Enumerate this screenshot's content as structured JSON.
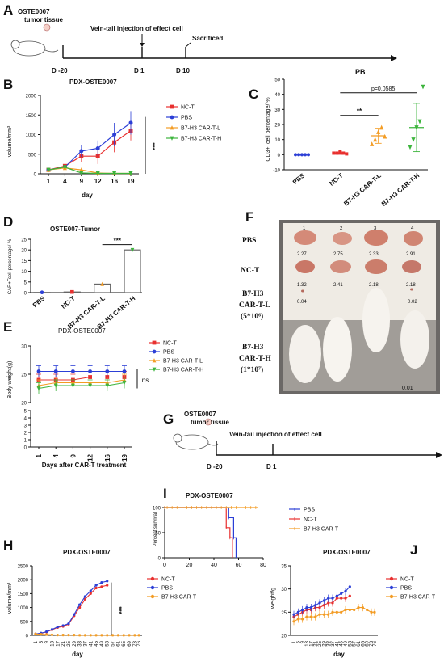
{
  "panel_letters": {
    "A": "A",
    "B": "B",
    "C": "C",
    "D": "D",
    "E": "E",
    "F": "F",
    "G": "G",
    "H": "H",
    "I": "I",
    "J": "J"
  },
  "timeline_A": {
    "label_top": "OSTE0007",
    "label_bottom": "tumor tissue",
    "injection": "Vein-tail injection of effect cell",
    "sacrificed": "Sacrificed",
    "ticks": [
      "D -20",
      "D 1",
      "D 10"
    ]
  },
  "timeline_G": {
    "label_top": "OSTE0007",
    "label_bottom": "tumor tissue",
    "injection": "Vein-tail injection of effect cell",
    "ticks": [
      "D -20",
      "D 1"
    ]
  },
  "photo_F": {
    "rows": [
      "PBS",
      "NC-T"
    ],
    "row_l": [
      "B7-H3",
      "CAR-T-L",
      "(5*10⁶)"
    ],
    "row_h": [
      "B7-H3",
      "CAR-T-H",
      "(1*10⁷)"
    ],
    "col_nums": [
      "1",
      "2",
      "3",
      "4"
    ],
    "weights_pbs": [
      "2.27",
      "2.75",
      "2.33",
      "2.91"
    ],
    "weights_nct": [
      "1.32",
      "2.41",
      "2.18",
      "2.18"
    ],
    "weights_low": [
      "0.04",
      "0.02"
    ],
    "weight_h": "0.01"
  },
  "chart_data": [
    {
      "id": "B",
      "type": "line",
      "title": "PDX-OSTE0007",
      "xlabel": "day",
      "ylabel": "volume/mm³",
      "categories": [
        "1",
        "4",
        "9",
        "12",
        "16",
        "19"
      ],
      "ylim": [
        0,
        2000
      ],
      "yticks": [
        "0",
        "500",
        "1000",
        "1500",
        "2000"
      ],
      "series": [
        {
          "name": "NC-T",
          "color": "#e8302f",
          "marker": "square",
          "values": [
            100,
            200,
            450,
            450,
            800,
            1100
          ],
          "err": [
            20,
            60,
            150,
            200,
            250,
            250
          ]
        },
        {
          "name": "PBS",
          "color": "#2c3fd6",
          "marker": "circle",
          "values": [
            100,
            170,
            580,
            650,
            1000,
            1300
          ],
          "err": [
            20,
            60,
            150,
            200,
            300,
            300
          ]
        },
        {
          "name": "B7-H3 CAR-T-L",
          "color": "#f39c24",
          "marker": "triangle",
          "values": [
            100,
            150,
            100,
            20,
            10,
            10
          ],
          "err": [
            20,
            50,
            40,
            10,
            5,
            5
          ]
        },
        {
          "name": "B7-H3 CAR-T-H",
          "color": "#3cb43c",
          "marker": "triangle-down",
          "values": [
            100,
            170,
            20,
            10,
            10,
            10
          ],
          "err": [
            20,
            50,
            10,
            5,
            5,
            5
          ]
        }
      ],
      "annotation": "***"
    },
    {
      "id": "C",
      "type": "scatter",
      "title": "PB",
      "ylabel": "CD3+Tcell percentage/ %",
      "categories": [
        "PBS",
        "NC-T",
        "B7-H3 CAR-T-L",
        "B7-H3 CAR-T-H"
      ],
      "ylim": [
        -10,
        50
      ],
      "yticks": [
        "-10",
        "0",
        "10",
        "20",
        "30",
        "40",
        "50"
      ],
      "colors": [
        "#2c3fd6",
        "#e8302f",
        "#f39c24",
        "#3cb43c"
      ],
      "points": [
        [
          0,
          0,
          0,
          0,
          0
        ],
        [
          1,
          1,
          2,
          1,
          0.5
        ],
        [
          7,
          10,
          15,
          18,
          12
        ],
        [
          5,
          10,
          18,
          22,
          45
        ]
      ],
      "means": [
        0,
        1,
        12.5,
        18
      ],
      "sd": [
        0.2,
        0.8,
        5,
        16
      ],
      "annotations": [
        "**",
        "p=0.0585"
      ]
    },
    {
      "id": "D",
      "type": "bar",
      "title": "OSTE007-Tumor",
      "ylabel": "CAR+Tcell percentage/ %",
      "categories": [
        "PBS",
        "NC-T",
        "B7-H3 CAR-T-L",
        "B7-H3 CAR-T-H"
      ],
      "values": [
        0.1,
        0.3,
        4,
        20
      ],
      "colors": [
        "#2c3fd6",
        "#e8302f",
        "#f39c24",
        "#3cb43c"
      ],
      "ylim": [
        0,
        25
      ],
      "yticks": [
        "0",
        "5",
        "10",
        "15",
        "20",
        "25"
      ],
      "annotation": "***"
    },
    {
      "id": "E",
      "type": "line",
      "title": "PDX-OSTE0007",
      "xlabel": "Days after CAR-T treatment",
      "ylabel": "Body weight(g)",
      "categories": [
        "1",
        "4",
        "9",
        "12",
        "16",
        "19"
      ],
      "ylim": [
        0,
        30
      ],
      "ybreak": [
        5,
        20
      ],
      "yticks": [
        "0",
        "1",
        "2",
        "3",
        "4",
        "5",
        "20",
        "25",
        "30"
      ],
      "series": [
        {
          "name": "NC-T",
          "color": "#e8302f",
          "marker": "square",
          "values": [
            24,
            24,
            24,
            24.5,
            24.5,
            24.5
          ],
          "err": [
            1,
            1,
            1,
            1,
            1,
            1
          ]
        },
        {
          "name": "PBS",
          "color": "#2c3fd6",
          "marker": "circle",
          "values": [
            25.5,
            25.5,
            25.5,
            25.5,
            25.5,
            25.5
          ],
          "err": [
            1,
            1,
            1,
            1,
            1,
            1
          ]
        },
        {
          "name": "B7-H3 CAR-T-L",
          "color": "#f39c24",
          "marker": "triangle",
          "values": [
            23,
            23.5,
            23.5,
            23.5,
            23.5,
            24
          ],
          "err": [
            1,
            1,
            1,
            1,
            1,
            1
          ]
        },
        {
          "name": "B7-H3 CAR-T-H",
          "color": "#3cb43c",
          "marker": "triangle-down",
          "values": [
            22.5,
            23,
            23,
            23,
            23,
            23.5
          ],
          "err": [
            1,
            1,
            1,
            1,
            1,
            1
          ]
        }
      ],
      "annotation": "ns"
    },
    {
      "id": "H",
      "type": "line",
      "title": "PDX-OSTE0007",
      "xlabel": "day",
      "ylabel": "volume/mm³",
      "ylim": [
        0,
        2500
      ],
      "yticks": [
        "0",
        "500",
        "1000",
        "1500",
        "2000",
        "2500"
      ],
      "xticks": [
        "1",
        "5",
        "9",
        "13",
        "17",
        "21",
        "25",
        "29",
        "33",
        "37",
        "41",
        "45",
        "49",
        "53",
        "57",
        "61",
        "65",
        "69",
        "73",
        "76"
      ],
      "series": [
        {
          "name": "NC-T",
          "color": "#e8302f",
          "x": [
            1,
            5,
            9,
            13,
            17,
            21,
            25,
            29,
            33,
            37,
            41,
            45,
            49,
            53
          ],
          "values": [
            50,
            70,
            120,
            200,
            280,
            320,
            400,
            700,
            1000,
            1300,
            1500,
            1700,
            1750,
            1800
          ]
        },
        {
          "name": "PBS",
          "color": "#2c3fd6",
          "x": [
            1,
            5,
            9,
            13,
            17,
            21,
            25,
            29,
            33,
            37,
            41,
            45,
            49,
            53
          ],
          "values": [
            50,
            80,
            130,
            210,
            300,
            350,
            420,
            750,
            1100,
            1400,
            1600,
            1800,
            1900,
            1950
          ]
        },
        {
          "name": "B7-H3 CAR-T",
          "color": "#f39c24",
          "x": [
            1,
            5,
            9,
            13,
            17,
            21,
            25,
            29,
            33,
            37,
            41,
            45,
            49,
            53,
            57,
            61,
            65,
            69,
            73,
            76
          ],
          "values": [
            50,
            40,
            30,
            20,
            10,
            10,
            10,
            10,
            5,
            5,
            5,
            5,
            5,
            5,
            5,
            5,
            5,
            5,
            5,
            5
          ]
        }
      ],
      "annotation": "***"
    },
    {
      "id": "I",
      "type": "line",
      "title": "PDX-OSTE0007",
      "ylabel": "Percent survival",
      "xlim": [
        0,
        80
      ],
      "xticks": [
        "0",
        "20",
        "40",
        "60",
        "80"
      ],
      "ylim": [
        0,
        100
      ],
      "yticks": [
        "0",
        "50",
        "100"
      ],
      "series": [
        {
          "name": "PBS",
          "color": "#2c3fd6",
          "x": [
            0,
            52,
            52,
            56,
            56,
            58,
            58
          ],
          "values": [
            100,
            100,
            80,
            80,
            40,
            40,
            0
          ]
        },
        {
          "name": "NC-T",
          "color": "#e8302f",
          "x": [
            0,
            50,
            50,
            53,
            53,
            55,
            55
          ],
          "values": [
            100,
            100,
            60,
            60,
            40,
            40,
            0
          ]
        },
        {
          "name": "B7-H3 CAR-T",
          "color": "#f39c24",
          "x": [
            0,
            76
          ],
          "values": [
            100,
            100
          ]
        }
      ]
    },
    {
      "id": "J",
      "type": "line",
      "title": "PDX-OSTE0007",
      "xlabel": "day",
      "ylabel": "weight/g",
      "ylim": [
        20,
        35
      ],
      "yticks": [
        "20",
        "25",
        "30",
        "35"
      ],
      "xticks": [
        "1",
        "5",
        "9",
        "13",
        "17",
        "21",
        "25",
        "29",
        "33",
        "37",
        "41",
        "45",
        "49",
        "53",
        "57",
        "61",
        "65",
        "69",
        "73",
        "76"
      ],
      "series": [
        {
          "name": "NC-T",
          "color": "#e8302f",
          "x": [
            1,
            5,
            9,
            13,
            17,
            21,
            25,
            29,
            33,
            37,
            41,
            45,
            49,
            53
          ],
          "values": [
            24,
            24.5,
            25,
            25.5,
            25.5,
            26,
            26,
            26.5,
            27,
            27,
            28,
            28,
            28,
            28.5
          ]
        },
        {
          "name": "PBS",
          "color": "#2c3fd6",
          "x": [
            1,
            5,
            9,
            13,
            17,
            21,
            25,
            29,
            33,
            37,
            41,
            45,
            49,
            53
          ],
          "values": [
            24.5,
            25,
            25.5,
            26,
            26,
            26.5,
            27,
            27.5,
            28,
            28,
            28.5,
            29,
            29.5,
            30.5
          ]
        },
        {
          "name": "B7-H3 CAR-T",
          "color": "#f39c24",
          "x": [
            1,
            5,
            9,
            13,
            17,
            21,
            25,
            29,
            33,
            37,
            41,
            45,
            49,
            53,
            57,
            61,
            65,
            69,
            73,
            76
          ],
          "values": [
            23,
            23.5,
            23.5,
            24,
            24,
            24,
            24.5,
            24.5,
            24.5,
            25,
            25,
            25,
            25.5,
            25.5,
            25.5,
            26,
            26,
            25.5,
            25,
            25
          ]
        }
      ]
    }
  ]
}
